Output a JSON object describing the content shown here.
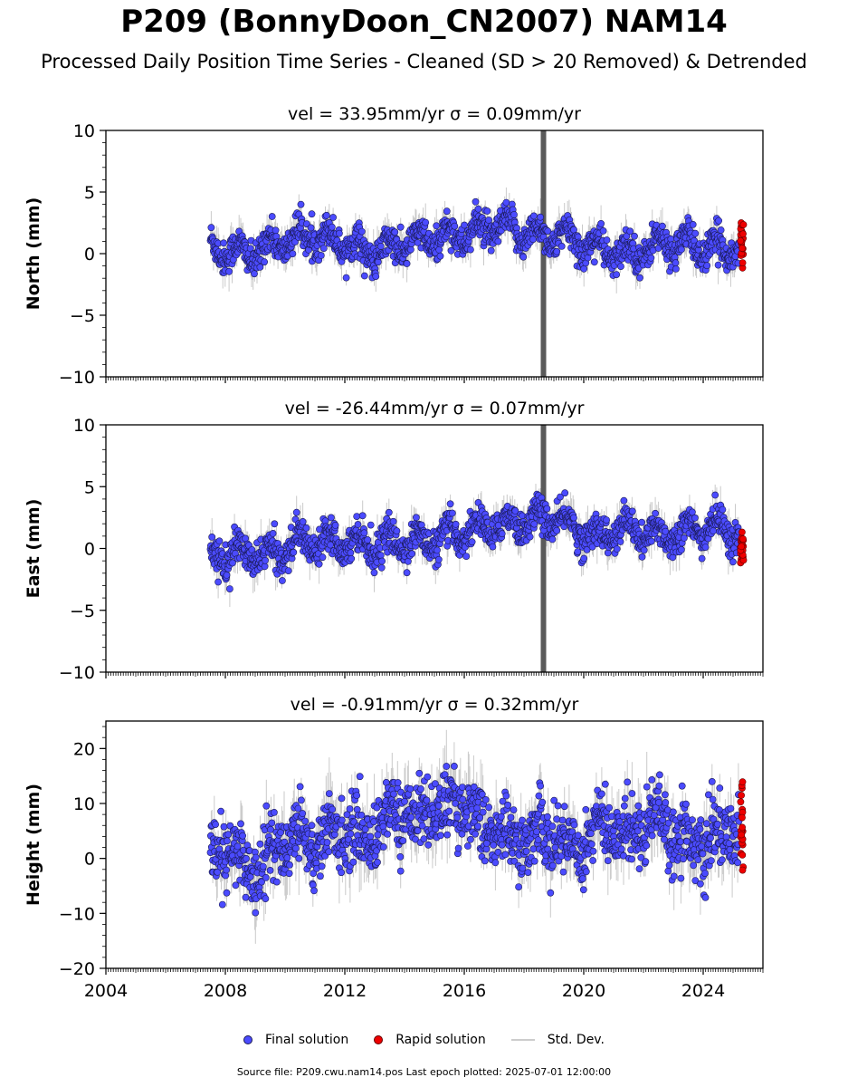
{
  "title": "P209 (BonnyDoon_CN2007) NAM14",
  "subtitle": "Processed Daily Position Time Series - Cleaned (SD > 20 Removed) & Detrended",
  "legend": {
    "final": "Final solution",
    "rapid": "Rapid solution",
    "std": "Std. Dev."
  },
  "source": "Source file: P209.cwu.nam14.pos  Last epoch plotted: 2025-07-01 12:00:00",
  "colors": {
    "final": "#4b4bff",
    "final_edge": "#1a1a55",
    "rapid": "#ee0000",
    "std_dev": "#8c8c8c"
  },
  "chart_data": [
    {
      "type": "scatter",
      "panel": "north",
      "title": "vel = 33.95mm/yr   σ = 0.09mm/yr",
      "xlabel": "",
      "ylabel": "North (mm)",
      "xlim": [
        2004,
        2026
      ],
      "ylim": [
        -10,
        10
      ],
      "xticks": [
        "2004",
        "2008",
        "2012",
        "2016",
        "2020",
        "2024"
      ],
      "yticks": [
        "−10",
        "−5",
        "0",
        "5",
        "10"
      ],
      "data_start": 2007.5,
      "rapid_start": 2025.2,
      "data_end": 2025.5,
      "spike_year": 2018.65,
      "series": [
        {
          "name": "Final solution",
          "x": [
            2007.5,
            2008.0,
            2008.5,
            2009.0,
            2009.5,
            2010.0,
            2010.5,
            2011.0,
            2011.5,
            2012.0,
            2012.5,
            2013.0,
            2013.5,
            2014.0,
            2014.5,
            2015.0,
            2015.5,
            2016.0,
            2016.5,
            2017.0,
            2017.5,
            2018.0,
            2018.5,
            2019.0,
            2019.5,
            2020.0,
            2020.5,
            2021.0,
            2021.5,
            2022.0,
            2022.5,
            2023.0,
            2023.5,
            2024.0,
            2024.5,
            2025.0
          ],
          "y": [
            0.5,
            0.3,
            0.0,
            0.0,
            0.7,
            1.0,
            1.3,
            1.5,
            1.2,
            1.0,
            0.3,
            0.0,
            0.4,
            0.8,
            1.1,
            1.2,
            1.5,
            1.5,
            1.8,
            2.2,
            2.0,
            1.7,
            1.5,
            1.5,
            1.2,
            0.8,
            0.4,
            0.0,
            0.0,
            0.3,
            0.7,
            0.9,
            0.8,
            0.5,
            0.3,
            0.5
          ]
        },
        {
          "name": "Rapid solution",
          "x": [
            2025.2,
            2025.3,
            2025.4,
            2025.5
          ],
          "y": [
            0.6,
            1.0,
            1.3,
            0.8
          ]
        }
      ]
    },
    {
      "type": "scatter",
      "panel": "east",
      "title": "vel = -26.44mm/yr   σ = 0.07mm/yr",
      "xlabel": "",
      "ylabel": "East (mm)",
      "xlim": [
        2004,
        2026
      ],
      "ylim": [
        -10,
        10
      ],
      "xticks": [
        "2004",
        "2008",
        "2012",
        "2016",
        "2020",
        "2024"
      ],
      "yticks": [
        "−10",
        "−5",
        "0",
        "5",
        "10"
      ],
      "data_start": 2007.5,
      "rapid_start": 2025.2,
      "data_end": 2025.5,
      "spike_year": 2018.65,
      "series": [
        {
          "name": "Final solution",
          "x": [
            2007.5,
            2008.0,
            2008.5,
            2009.0,
            2009.5,
            2010.0,
            2010.5,
            2011.0,
            2011.5,
            2012.0,
            2012.5,
            2013.0,
            2013.5,
            2014.0,
            2014.5,
            2015.0,
            2015.5,
            2016.0,
            2016.5,
            2017.0,
            2017.5,
            2018.0,
            2018.5,
            2019.0,
            2019.5,
            2020.0,
            2020.5,
            2021.0,
            2021.5,
            2022.0,
            2022.5,
            2023.0,
            2023.5,
            2024.0,
            2024.5,
            2025.0
          ],
          "y": [
            -0.5,
            -0.6,
            -0.4,
            -0.5,
            -0.6,
            0.0,
            0.5,
            0.6,
            0.8,
            0.6,
            0.5,
            0.3,
            0.4,
            0.6,
            0.5,
            0.7,
            1.0,
            1.4,
            1.6,
            1.8,
            2.0,
            2.2,
            2.4,
            2.5,
            2.0,
            1.2,
            1.0,
            1.4,
            1.6,
            1.2,
            1.0,
            1.2,
            1.4,
            1.6,
            1.8,
            1.3
          ]
        },
        {
          "name": "Rapid solution",
          "x": [
            2025.2,
            2025.3,
            2025.4,
            2025.5
          ],
          "y": [
            0.2,
            -0.3,
            -0.8,
            0.5
          ]
        }
      ]
    },
    {
      "type": "scatter",
      "panel": "height",
      "title": "vel = -0.91mm/yr   σ = 0.32mm/yr",
      "xlabel": "",
      "ylabel": "Height (mm)",
      "xlim": [
        2004,
        2026
      ],
      "ylim": [
        -20,
        25
      ],
      "xticks": [
        "2004",
        "2008",
        "2012",
        "2016",
        "2020",
        "2024"
      ],
      "yticks": [
        "−20",
        "−10",
        "0",
        "10",
        "20"
      ],
      "data_start": 2007.5,
      "rapid_start": 2025.2,
      "data_end": 2025.5,
      "spike_year": null,
      "series": [
        {
          "name": "Final solution",
          "x": [
            2007.5,
            2008.0,
            2008.5,
            2009.0,
            2009.5,
            2010.0,
            2010.5,
            2011.0,
            2011.5,
            2012.0,
            2012.5,
            2013.0,
            2013.5,
            2014.0,
            2014.5,
            2015.0,
            2015.5,
            2016.0,
            2016.5,
            2017.0,
            2017.5,
            2018.0,
            2018.5,
            2019.0,
            2019.5,
            2020.0,
            2020.5,
            2021.0,
            2021.5,
            2022.0,
            2022.5,
            2023.0,
            2023.5,
            2024.0,
            2024.5,
            2025.0
          ],
          "y": [
            0.0,
            2.0,
            -1.0,
            -2.0,
            1.0,
            3.0,
            5.0,
            2.0,
            4.0,
            6.0,
            3.0,
            5.0,
            8.0,
            9.0,
            7.0,
            10.0,
            8.0,
            11.0,
            6.0,
            5.0,
            4.0,
            3.0,
            5.0,
            4.0,
            2.0,
            3.0,
            6.0,
            5.0,
            4.0,
            7.0,
            8.0,
            5.0,
            3.0,
            2.0,
            4.0,
            5.0
          ]
        },
        {
          "name": "Rapid solution",
          "x": [
            2025.2,
            2025.3,
            2025.4,
            2025.5
          ],
          "y": [
            2.0,
            5.0,
            8.0,
            4.0
          ]
        }
      ]
    }
  ]
}
